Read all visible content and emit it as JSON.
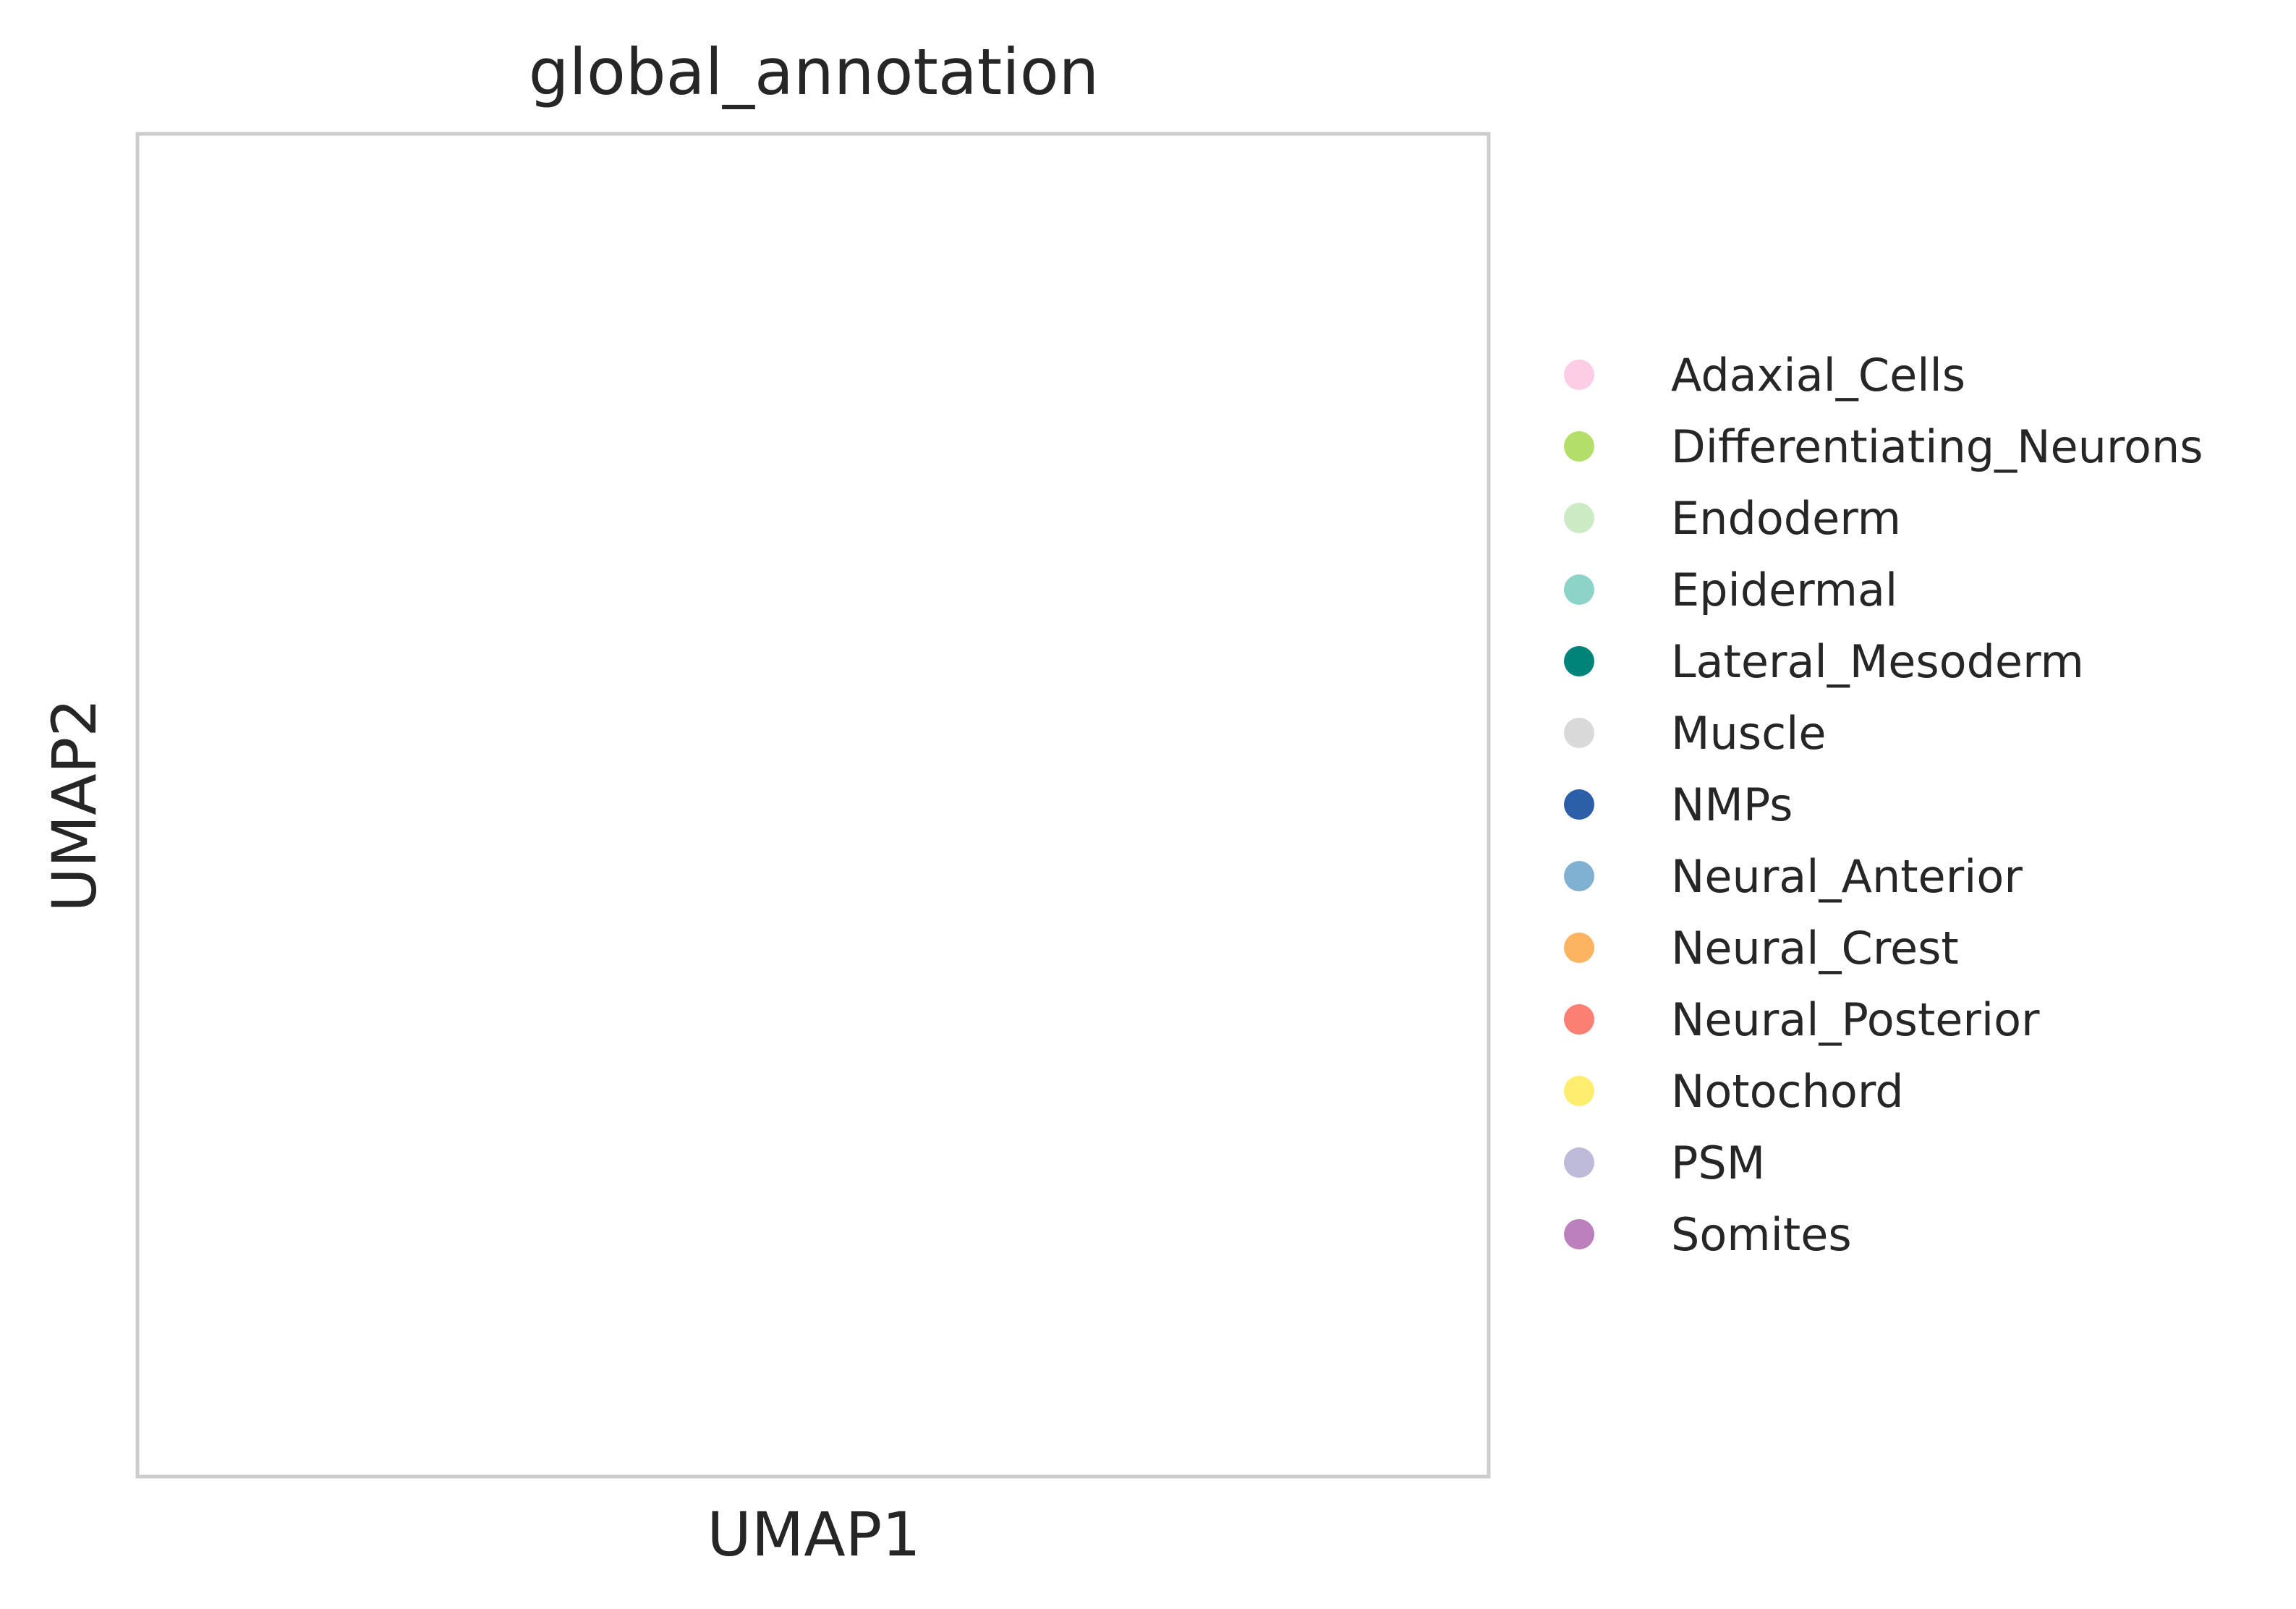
{
  "chart_data": {
    "type": "scatter",
    "title": "global_annotation",
    "xlabel": "UMAP1",
    "ylabel": "UMAP2",
    "xticks": [],
    "yticks": [],
    "grid": false,
    "legend_position": "right",
    "series": [
      {
        "name": "Adaxial_Cells",
        "color": "#fccde5"
      },
      {
        "name": "Differentiating_Neurons",
        "color": "#b3de69"
      },
      {
        "name": "Endoderm",
        "color": "#ccebc5"
      },
      {
        "name": "Epidermal",
        "color": "#8dd3c7"
      },
      {
        "name": "Lateral_Mesoderm",
        "color": "#00847a"
      },
      {
        "name": "Muscle",
        "color": "#d9d9d9"
      },
      {
        "name": "NMPs",
        "color": "#2c5fa8"
      },
      {
        "name": "Neural_Anterior",
        "color": "#80b1d3"
      },
      {
        "name": "Neural_Crest",
        "color": "#fdb462"
      },
      {
        "name": "Neural_Posterior",
        "color": "#fb8072"
      },
      {
        "name": "Notochord",
        "color": "#ffed6f"
      },
      {
        "name": "PSM",
        "color": "#bebada"
      },
      {
        "name": "Somites",
        "color": "#bc80bd"
      }
    ]
  }
}
